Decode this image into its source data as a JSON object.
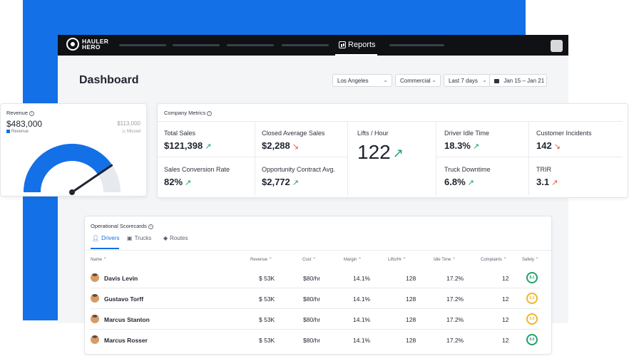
{
  "brand": {
    "line1": "HAULER",
    "line2": "HERO"
  },
  "nav": {
    "reports_label": "Reports"
  },
  "page": {
    "title": "Dashboard"
  },
  "filters": {
    "location": "Los Angeles",
    "segment": "Commercial",
    "range": "Last 7 days",
    "dates": "Jan 15 – Jan 21"
  },
  "revenue": {
    "title": "Revenue",
    "value": "$483,000",
    "legend": "Revenue",
    "target": "$113,000",
    "missed": "Missed",
    "fill_fraction": 0.81,
    "colors": {
      "fill": "#1470e6",
      "track": "#e6eaef",
      "needle": "#1f2430"
    }
  },
  "metrics": {
    "title": "Company Metrics",
    "items": [
      {
        "label": "Total Sales",
        "value": "$121,398",
        "trend": "up"
      },
      {
        "label": "Closed Average Sales",
        "value": "$2,288",
        "trend": "down"
      },
      {
        "label": "Lifts / Hour",
        "value": "122",
        "trend": "up"
      },
      {
        "label": "Driver Idle Time",
        "value": "18.3%",
        "trend": "up"
      },
      {
        "label": "Customer Incidents",
        "value": "142",
        "trend": "down"
      },
      {
        "label": "Sales Conversion Rate",
        "value": "82%",
        "trend": "up"
      },
      {
        "label": "Opportunity Contract Avg.",
        "value": "$2,772",
        "trend": "up"
      },
      {
        "label": "Truck Downtime",
        "value": "6.8%",
        "trend": "up"
      },
      {
        "label": "TRIR",
        "value": "3.1",
        "trend": "down"
      }
    ],
    "colors": {
      "up": "#22a06b",
      "down": "#e5533d"
    }
  },
  "scorecards": {
    "title": "Operational Scorecards",
    "tabs": [
      "Drivers",
      "Trucks",
      "Routes"
    ],
    "active_tab": "Drivers",
    "headers": [
      "Name ⌃",
      "Revenue ⌃",
      "Cost ⌃",
      "Margin ⌃",
      "Lifts/Hr ⌃",
      "Idle Time ⌃",
      "Complaints ⌃",
      "Safety ⌃"
    ],
    "rows": [
      {
        "name": "Davis Levin",
        "revenue": "$ 53K",
        "cost": "$80/hr",
        "margin": "14.1%",
        "lifts": "128",
        "idle": "17.2%",
        "complaints": "12",
        "safety": "8.1",
        "safety_color": "#22a06b"
      },
      {
        "name": "Gustavo Torff",
        "revenue": "$ 53K",
        "cost": "$80/hr",
        "margin": "14.1%",
        "lifts": "128",
        "idle": "17.2%",
        "complaints": "12",
        "safety": "6.2",
        "safety_color": "#f0b429"
      },
      {
        "name": "Marcus Stanton",
        "revenue": "$ 53K",
        "cost": "$80/hr",
        "margin": "14.1%",
        "lifts": "128",
        "idle": "17.2%",
        "complaints": "12",
        "safety": "5.0",
        "safety_color": "#f0b429"
      },
      {
        "name": "Marcus Rosser",
        "revenue": "$ 53K",
        "cost": "$80/hr",
        "margin": "14.1%",
        "lifts": "128",
        "idle": "17.2%",
        "complaints": "12",
        "safety": "9.0",
        "safety_color": "#22a06b"
      }
    ]
  }
}
